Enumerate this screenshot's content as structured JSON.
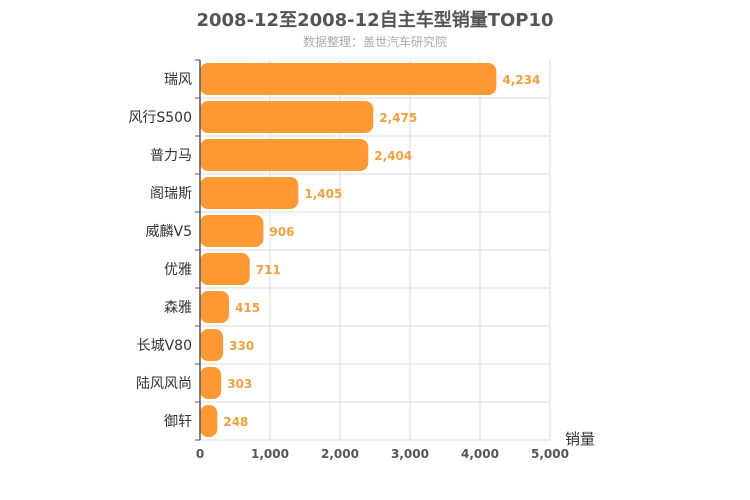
{
  "chart_data": {
    "type": "bar",
    "orientation": "horizontal",
    "title": "2008-12至2008-12自主车型销量TOP10",
    "subtitle": "数据整理：盖世汽车研究院",
    "categories": [
      "瑞风",
      "风行S500",
      "普力马",
      "阁瑞斯",
      "威麟V5",
      "优雅",
      "森雅",
      "长城V80",
      "陆风风尚",
      "御轩"
    ],
    "values": [
      4234,
      2475,
      2404,
      1405,
      906,
      711,
      415,
      330,
      303,
      248
    ],
    "value_labels": [
      "4,234",
      "2,475",
      "2,404",
      "1,405",
      "906",
      "711",
      "415",
      "330",
      "303",
      "248"
    ],
    "xlabel": "销量",
    "xlim": [
      0,
      5000
    ],
    "xticks": [
      0,
      1000,
      2000,
      3000,
      4000,
      5000
    ],
    "xtick_labels": [
      "0",
      "1,000",
      "2,000",
      "3,000",
      "4,000",
      "5,000"
    ],
    "grid": true,
    "colors": {
      "bar": "#ff9933",
      "value_label": "#f0a040",
      "grid": "#dddddd",
      "axis": "#555555"
    }
  }
}
